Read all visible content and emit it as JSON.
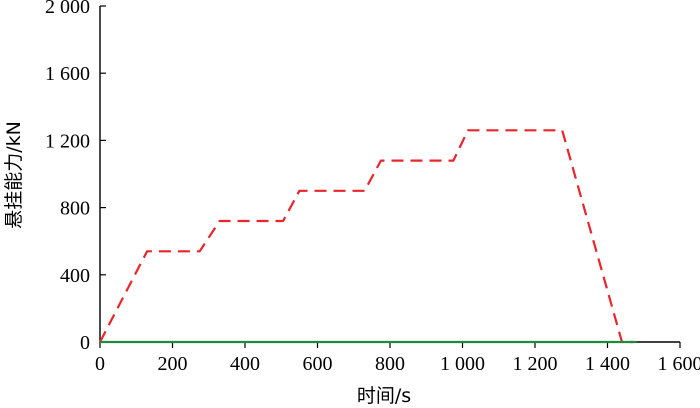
{
  "chart_data": {
    "type": "line",
    "title": "",
    "xlabel": "时间/s",
    "ylabel": "悬挂能力/kN",
    "xlim": [
      0,
      1600
    ],
    "ylim": [
      0,
      2000
    ],
    "x_ticks": [
      0,
      200,
      400,
      600,
      800,
      1000,
      1200,
      1400,
      1600
    ],
    "x_tick_labels": [
      "0",
      "200",
      "400",
      "600",
      "800",
      "1 000",
      "1 200",
      "1 400",
      "1 600"
    ],
    "y_ticks": [
      0,
      400,
      800,
      1200,
      1600,
      2000
    ],
    "y_tick_labels": [
      "0",
      "400",
      "800",
      "1 200",
      "1 600",
      "2 000"
    ],
    "grid": false,
    "legend": "none",
    "series": [
      {
        "style": "dashed",
        "color": "#e8262a",
        "points": [
          [
            0,
            0
          ],
          [
            130,
            540
          ],
          [
            275,
            540
          ],
          [
            330,
            720
          ],
          [
            505,
            720
          ],
          [
            550,
            900
          ],
          [
            730,
            900
          ],
          [
            775,
            1080
          ],
          [
            975,
            1080
          ],
          [
            1015,
            1260
          ],
          [
            1275,
            1260
          ],
          [
            1440,
            0
          ],
          [
            1470,
            0
          ]
        ]
      },
      {
        "style": "solid",
        "color": "#1f8a3c",
        "points": [
          [
            0,
            0
          ],
          [
            1480,
            0
          ]
        ]
      }
    ]
  }
}
